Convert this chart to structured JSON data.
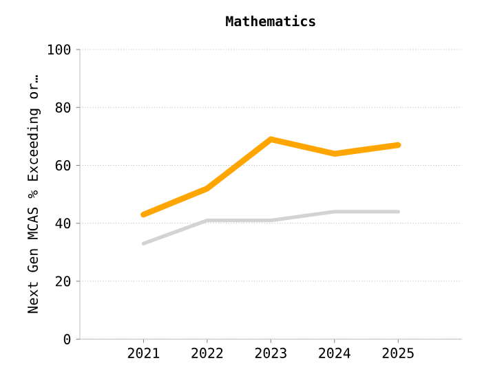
{
  "chart_data": {
    "type": "line",
    "title": "Mathematics",
    "ylabel": "Next Gen MCAS % Exceeding or…",
    "categories": [
      "2021",
      "2022",
      "2023",
      "2024",
      "2025"
    ],
    "series": [
      {
        "color": "#ffa500",
        "values": [
          43,
          52,
          69,
          64,
          67
        ]
      },
      {
        "color": "#d3d3d3",
        "values": [
          33,
          41,
          41,
          44,
          44
        ]
      }
    ],
    "ylim": [
      0,
      100
    ],
    "yticks": [
      0,
      20,
      40,
      60,
      80,
      100
    ],
    "grid": "y",
    "marker": "none",
    "line_style": "solid"
  }
}
